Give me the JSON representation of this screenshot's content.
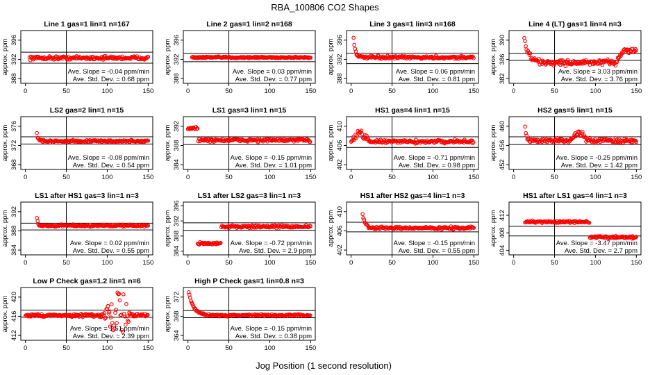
{
  "title": "RBA_100806  CO2 Shapes",
  "xlabel": "Jog Position (1 second resolution)",
  "chart_data": [
    {
      "type": "scatter",
      "title": "Line 1 gas=1 lin=1 n=167",
      "ylabel": "approx. ppm",
      "xlim": [
        0,
        150
      ],
      "ylim": [
        387,
        398
      ],
      "xticks": [
        0,
        50,
        100,
        150
      ],
      "yticks": [
        388,
        392,
        396
      ],
      "hlines": [
        393.5,
        391.2
      ],
      "vline": 50,
      "baseline": 392.3,
      "noise": 0.3,
      "start": 5,
      "features": [],
      "slope_text": "Ave. Slope = -0.04  ppm/min",
      "std_text": "Ave. Std. Dev. = 0.68  ppm"
    },
    {
      "type": "scatter",
      "title": "Line 2 gas=1 lin=2 n=168",
      "ylabel": "approx. ppm",
      "xlim": [
        0,
        150
      ],
      "ylim": [
        387,
        398
      ],
      "xticks": [
        0,
        50,
        100,
        150
      ],
      "yticks": [
        388,
        392,
        396
      ],
      "hlines": [
        393.2,
        391.5
      ],
      "vline": 50,
      "baseline": 392.4,
      "noise": 0.15,
      "start": 5,
      "features": [],
      "slope_text": "Ave. Slope = 0.03  ppm/min",
      "std_text": "Ave. Std. Dev. = 0.77  ppm"
    },
    {
      "type": "scatter",
      "title": "Line 3 gas=1 lin=3 n=168",
      "ylabel": "approx. ppm",
      "xlim": [
        0,
        150
      ],
      "ylim": [
        387,
        398
      ],
      "xticks": [
        0,
        50,
        100,
        150
      ],
      "yticks": [
        388,
        392,
        396
      ],
      "hlines": [
        393.3,
        391.1
      ],
      "vline": 50,
      "baseline": 392.4,
      "noise": 0.25,
      "start": 3,
      "features": [
        {
          "type": "decay",
          "x0": 3,
          "x1": 12,
          "amp": 4
        }
      ],
      "slope_text": "Ave. Slope = 0.06  ppm/min",
      "std_text": "Ave. Std. Dev. = 0.81  ppm"
    },
    {
      "type": "scatter",
      "title": "Line 4 (LT) gas=1 lin=4 n=3",
      "ylabel": "approx. ppm",
      "xlim": [
        0,
        150
      ],
      "ylim": [
        381,
        392
      ],
      "xticks": [
        0,
        50,
        100,
        150
      ],
      "yticks": [
        382,
        386,
        390
      ],
      "hlines": [
        387.2,
        385.8
      ],
      "vline": 50,
      "baseline": 385.3,
      "noise": 0.5,
      "start": 13,
      "features": [
        {
          "type": "decay",
          "x0": 13,
          "x1": 35,
          "amp": 5
        },
        {
          "type": "step",
          "x0": 125,
          "x1": 150,
          "amp": 2.5
        }
      ],
      "slope_text": "Ave. Slope = 3.03  ppm/min",
      "std_text": "Ave. Std. Dev. = 3.76  ppm"
    },
    {
      "type": "scatter",
      "title": "LS2 gas=2 lin=1 n=15",
      "ylabel": "approx. ppm",
      "xlim": [
        0,
        150
      ],
      "ylim": [
        367,
        378
      ],
      "xticks": [
        0,
        50,
        100,
        150
      ],
      "yticks": [
        368,
        372,
        376
      ],
      "hlines": [
        373.8,
        372.3
      ],
      "vline": 50,
      "baseline": 372.9,
      "noise": 0.2,
      "start": 14,
      "features": [
        {
          "type": "decay",
          "x0": 14,
          "x1": 22,
          "amp": 1.5
        }
      ],
      "slope_text": "Ave. Slope = -0.08  ppm/min",
      "std_text": "Ave. Std. Dev. = 0.54  ppm"
    },
    {
      "type": "scatter",
      "title": "LS1 gas=3 lin=1 n=15",
      "ylabel": "approx. ppm",
      "xlim": [
        0,
        150
      ],
      "ylim": [
        383,
        394
      ],
      "xticks": [
        0,
        50,
        100,
        150
      ],
      "yticks": [
        384,
        388,
        392
      ],
      "hlines": [
        389.8,
        388.2
      ],
      "vline": 50,
      "baseline": 389.1,
      "noise": 0.3,
      "start": 0,
      "features": [
        {
          "type": "plateau",
          "x0": 0,
          "x1": 12,
          "amp": 2.5
        }
      ],
      "slope_text": "Ave. Slope = -0.15  ppm/min",
      "std_text": "Ave. Std. Dev. = 1.01  ppm"
    },
    {
      "type": "scatter",
      "title": "HS1 gas=4 lin=1 n=15",
      "ylabel": "approx. ppm",
      "xlim": [
        0,
        150
      ],
      "ylim": [
        401,
        412
      ],
      "xticks": [
        0,
        50,
        100,
        150
      ],
      "yticks": [
        402,
        406,
        410
      ],
      "hlines": [
        407.8,
        405.6
      ],
      "vline": 50,
      "baseline": 406.8,
      "noise": 0.3,
      "start": 0,
      "features": [
        {
          "type": "bump",
          "x0": 0,
          "x1": 22,
          "amp": 2
        }
      ],
      "slope_text": "Ave. Slope = -0.71  ppm/min",
      "std_text": "Ave. Std. Dev. = 0.98  ppm"
    },
    {
      "type": "scatter",
      "title": "HS2 gas=5 lin=1 n=15",
      "ylabel": "approx. ppm",
      "xlim": [
        0,
        150
      ],
      "ylim": [
        451,
        462
      ],
      "xticks": [
        0,
        50,
        100,
        150
      ],
      "yticks": [
        452,
        456,
        460
      ],
      "hlines": [
        457.8,
        456.2
      ],
      "vline": 50,
      "baseline": 457,
      "noise": 0.4,
      "start": 14,
      "features": [
        {
          "type": "decay",
          "x0": 14,
          "x1": 20,
          "amp": 3
        },
        {
          "type": "bump",
          "x0": 70,
          "x1": 90,
          "amp": 1.5
        }
      ],
      "slope_text": "Ave. Slope = -0.25  ppm/min",
      "std_text": "Ave. Std. Dev. = 1.42  ppm"
    },
    {
      "type": "scatter",
      "title": "LS1 after HS1 gas=3 lin=1 n=3",
      "ylabel": "approx. ppm",
      "xlim": [
        0,
        150
      ],
      "ylim": [
        383,
        394
      ],
      "xticks": [
        0,
        50,
        100,
        150
      ],
      "yticks": [
        384,
        388,
        392
      ],
      "hlines": [
        389.6,
        388.2
      ],
      "vline": 50,
      "baseline": 389.1,
      "noise": 0.2,
      "start": 14,
      "features": [
        {
          "type": "decay",
          "x0": 14,
          "x1": 18,
          "amp": 1.6
        }
      ],
      "slope_text": "Ave. Slope = 0.02  ppm/min",
      "std_text": "Ave. Std. Dev. = 0.55  ppm"
    },
    {
      "type": "scatter",
      "title": "LS1 after LS2 gas=3 lin=1 n=3",
      "ylabel": "approx. ppm",
      "xlim": [
        0,
        150
      ],
      "ylim": [
        383,
        397
      ],
      "xticks": [
        0,
        50,
        100,
        150
      ],
      "yticks": [
        384,
        388,
        392,
        396
      ],
      "hlines": [
        391.5,
        389.5
      ],
      "vline": 50,
      "baseline": 390.5,
      "noise": 0.3,
      "start": 12,
      "features": [
        {
          "type": "plateau",
          "x0": 12,
          "x1": 40,
          "amp": -4.5
        }
      ],
      "slope_text": "Ave. Slope = -0.72  ppm/min",
      "std_text": "Ave. Std. Dev. = 2.9  ppm"
    },
    {
      "type": "scatter",
      "title": "HS1 after HS2 gas=4 lin=1 n=3",
      "ylabel": "approx. ppm",
      "xlim": [
        0,
        150
      ],
      "ylim": [
        401,
        412
      ],
      "xticks": [
        0,
        50,
        100,
        150
      ],
      "yticks": [
        402,
        406,
        410
      ],
      "hlines": [
        407.8,
        405.8
      ],
      "vline": 50,
      "baseline": 406.6,
      "noise": 0.25,
      "start": 14,
      "features": [
        {
          "type": "decay",
          "x0": 14,
          "x1": 25,
          "amp": 3
        }
      ],
      "slope_text": "Ave. Slope = -0.15  ppm/min",
      "std_text": "Ave. Std. Dev. = 0.55  ppm"
    },
    {
      "type": "scatter",
      "title": "HS1 after LS1 gas=4 lin=1 n=3",
      "ylabel": "approx. ppm",
      "xlim": [
        0,
        150
      ],
      "ylim": [
        403,
        415
      ],
      "xticks": [
        0,
        50,
        100,
        150
      ],
      "yticks": [
        404,
        408,
        412
      ],
      "hlines": [
        409.5,
        407.3
      ],
      "vline": 50,
      "baseline": 407,
      "noise": 0.2,
      "start": 14,
      "features": [
        {
          "type": "plateau",
          "x0": 14,
          "x1": 93,
          "amp": 3.5
        }
      ],
      "slope_text": "Ave. Slope = -3.47  ppm/min",
      "std_text": "Ave. Std. Dev. = 2.7  ppm"
    },
    {
      "type": "scatter",
      "title": "Low P Check gas=1.2 lin=1 n=6",
      "ylabel": "approx. ppm",
      "xlim": [
        0,
        150
      ],
      "ylim": [
        411,
        422
      ],
      "xticks": [
        0,
        50,
        100,
        150
      ],
      "yticks": [
        412,
        416,
        420
      ],
      "hlines": [
        417.3,
        415.8
      ],
      "vline": 50,
      "baseline": 416.2,
      "noise": 0.3,
      "start": 0,
      "features": [
        {
          "type": "scatter",
          "x0": 95,
          "x1": 130,
          "amp": 3
        }
      ],
      "slope_text": "Ave. Slope = 1.51  ppm/min",
      "std_text": "Ave. Std. Dev. = 2.39  ppm"
    },
    {
      "type": "scatter",
      "title": "High P Check gas=1 lin=0.8 n=3",
      "ylabel": "approx. ppm",
      "xlim": [
        0,
        150
      ],
      "ylim": [
        363,
        374
      ],
      "xticks": [
        0,
        50,
        100,
        150
      ],
      "yticks": [
        364,
        368,
        372
      ],
      "hlines": [
        369.2,
        367.7
      ],
      "vline": 50,
      "baseline": 368.2,
      "noise": 0.2,
      "start": 0,
      "features": [
        {
          "type": "decay",
          "x0": 0,
          "x1": 25,
          "amp": 5.5
        }
      ],
      "slope_text": "Ave. Slope = -0.15  ppm/min",
      "std_text": "Ave. Std. Dev. = 0.38  ppm"
    }
  ],
  "colors": {
    "points": "#ff0000",
    "axis": "#000000"
  }
}
